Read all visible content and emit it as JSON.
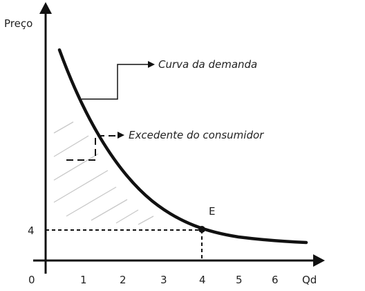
{
  "diagram": {
    "y_axis_label": "Preço",
    "x_axis_label": "Qd",
    "origin_label": "0",
    "x_ticks": [
      "1",
      "2",
      "3",
      "4",
      "5",
      "6"
    ],
    "price_level_label": "4",
    "equilibrium_label": "E",
    "demand_curve_label": "Curva da demanda",
    "consumer_surplus_label": "Excedente do consumidor",
    "colors": {
      "ink": "#111111",
      "hatch": "#c8c8c8",
      "text": "#222222"
    }
  }
}
